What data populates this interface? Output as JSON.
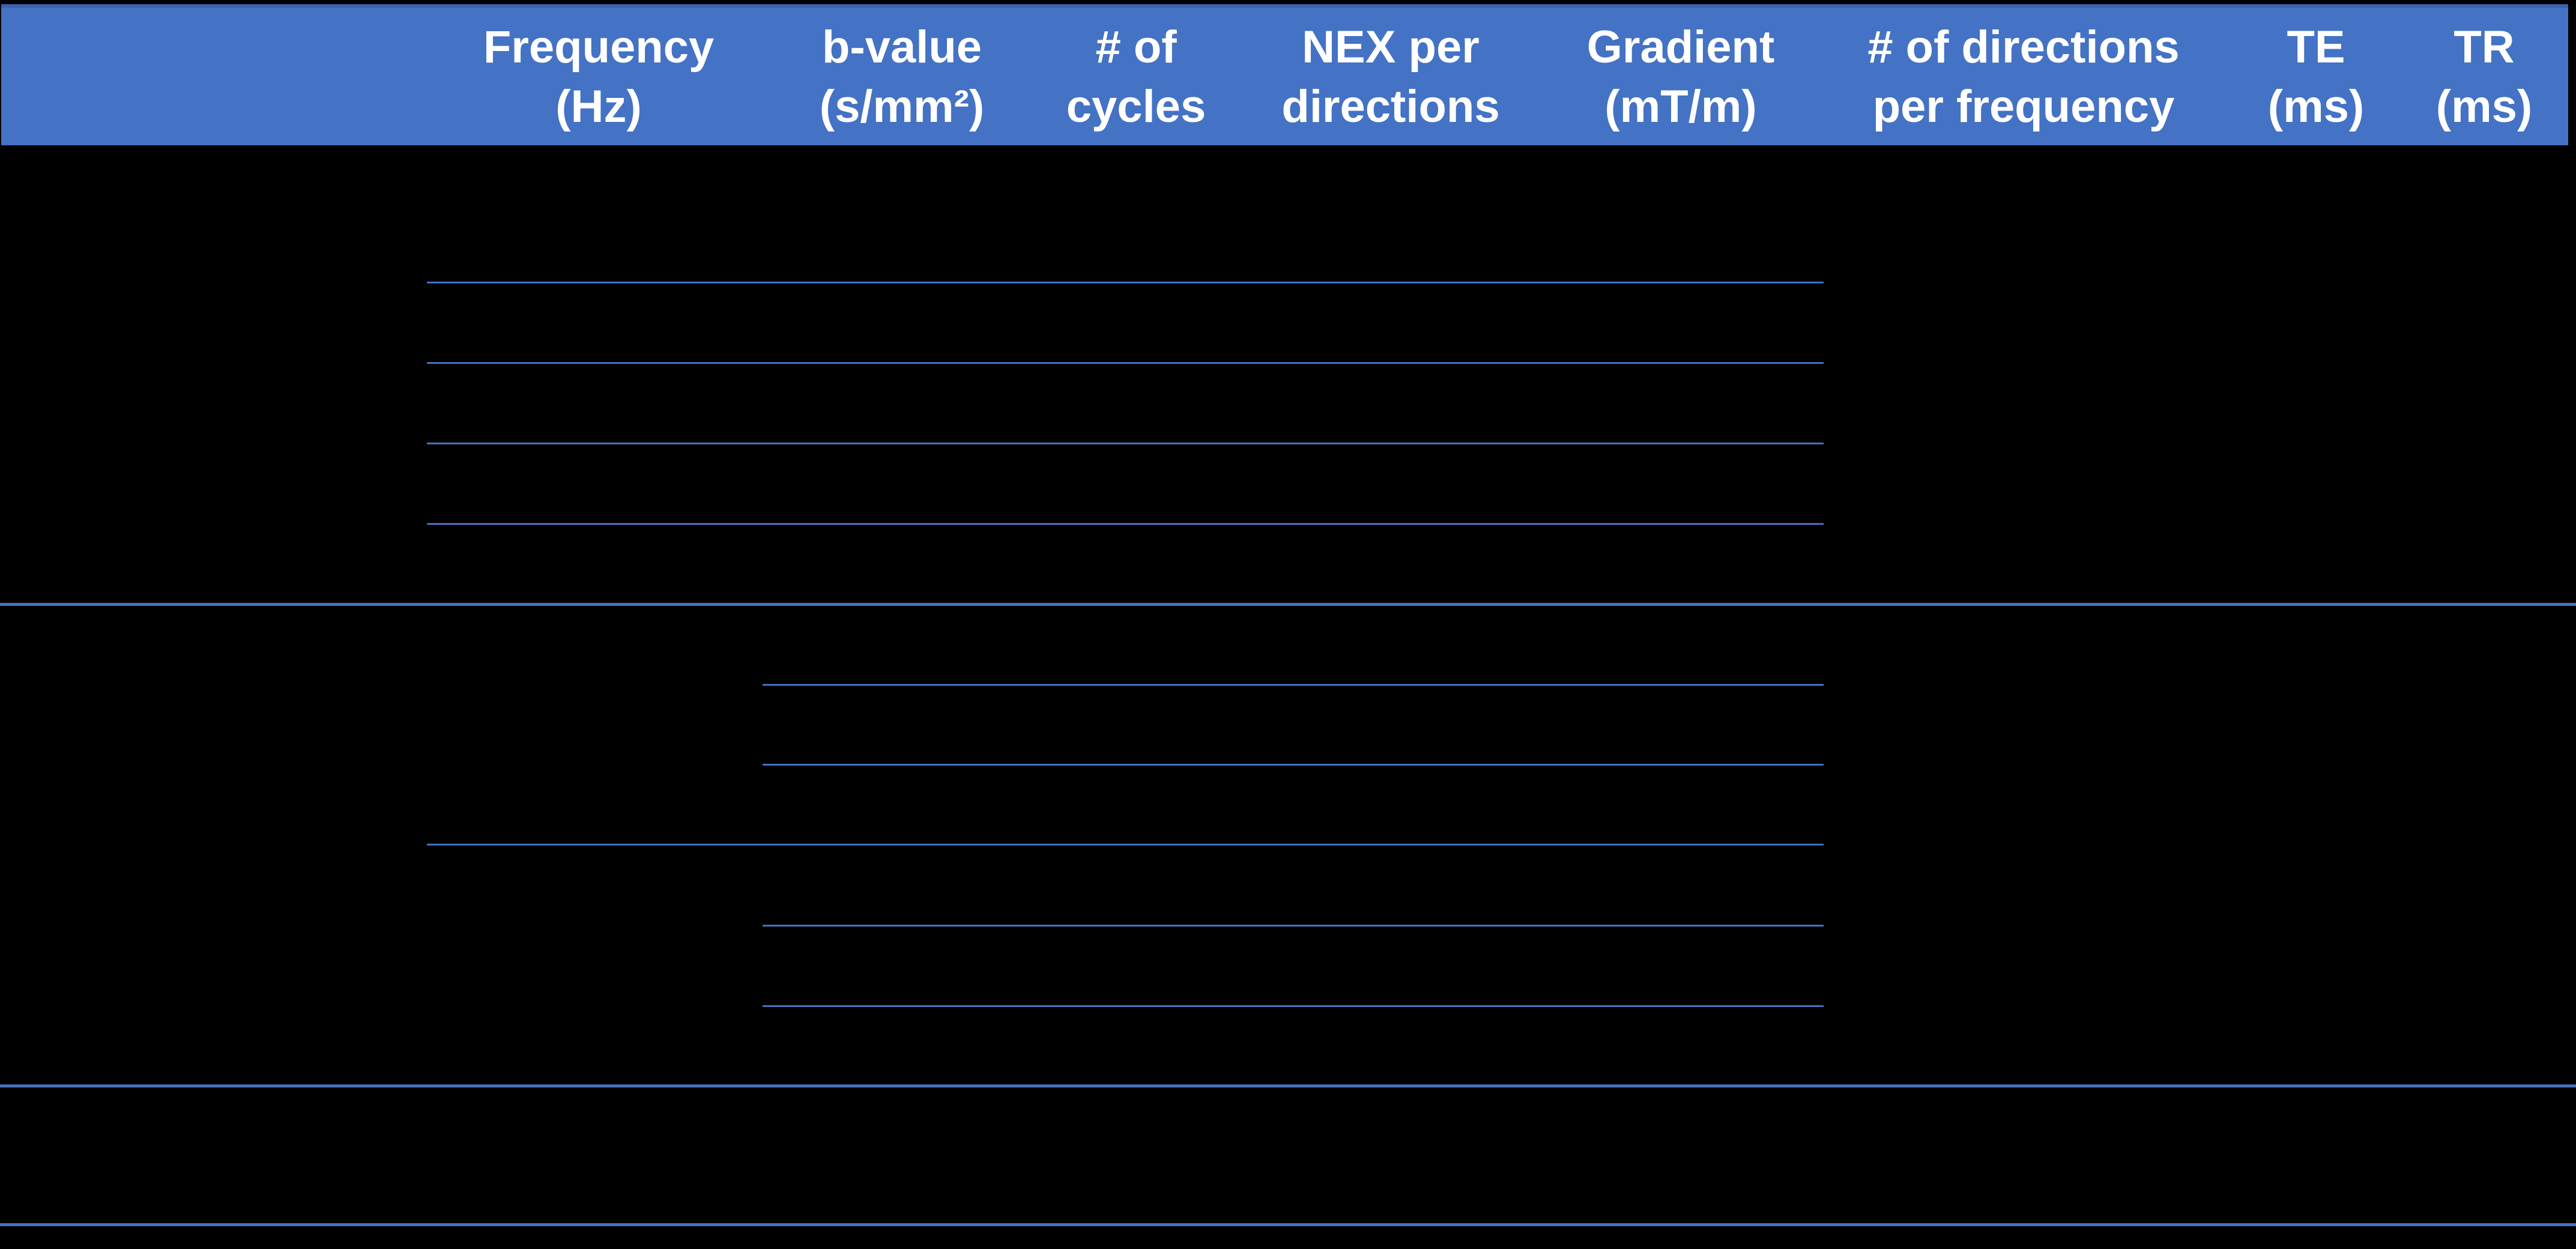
{
  "colors": {
    "accent": "#4472C4",
    "accent_dark": "#3A63AF",
    "header_text": "#FFFFFF",
    "background": "#000000"
  },
  "table": {
    "description": "MRI acquisition parameters table; body cell text not visible against black background",
    "columns": [
      {
        "id": "frequency",
        "line1": "Frequency",
        "line2": "(Hz)"
      },
      {
        "id": "bvalue",
        "line1": "b-value",
        "line2": "(s/mm²)"
      },
      {
        "id": "cycles",
        "line1": "# of",
        "line2": "cycles"
      },
      {
        "id": "nex",
        "line1": "NEX per",
        "line2": "directions"
      },
      {
        "id": "gradient",
        "line1": "Gradient",
        "line2": "(mT/m)"
      },
      {
        "id": "directions",
        "line1": "# of directions",
        "line2": "per frequency"
      },
      {
        "id": "te",
        "line1": "TE",
        "line2": "(ms)"
      },
      {
        "id": "tr",
        "line1": "TR",
        "line2": "(ms)"
      }
    ],
    "body_rows_visible_text": []
  }
}
